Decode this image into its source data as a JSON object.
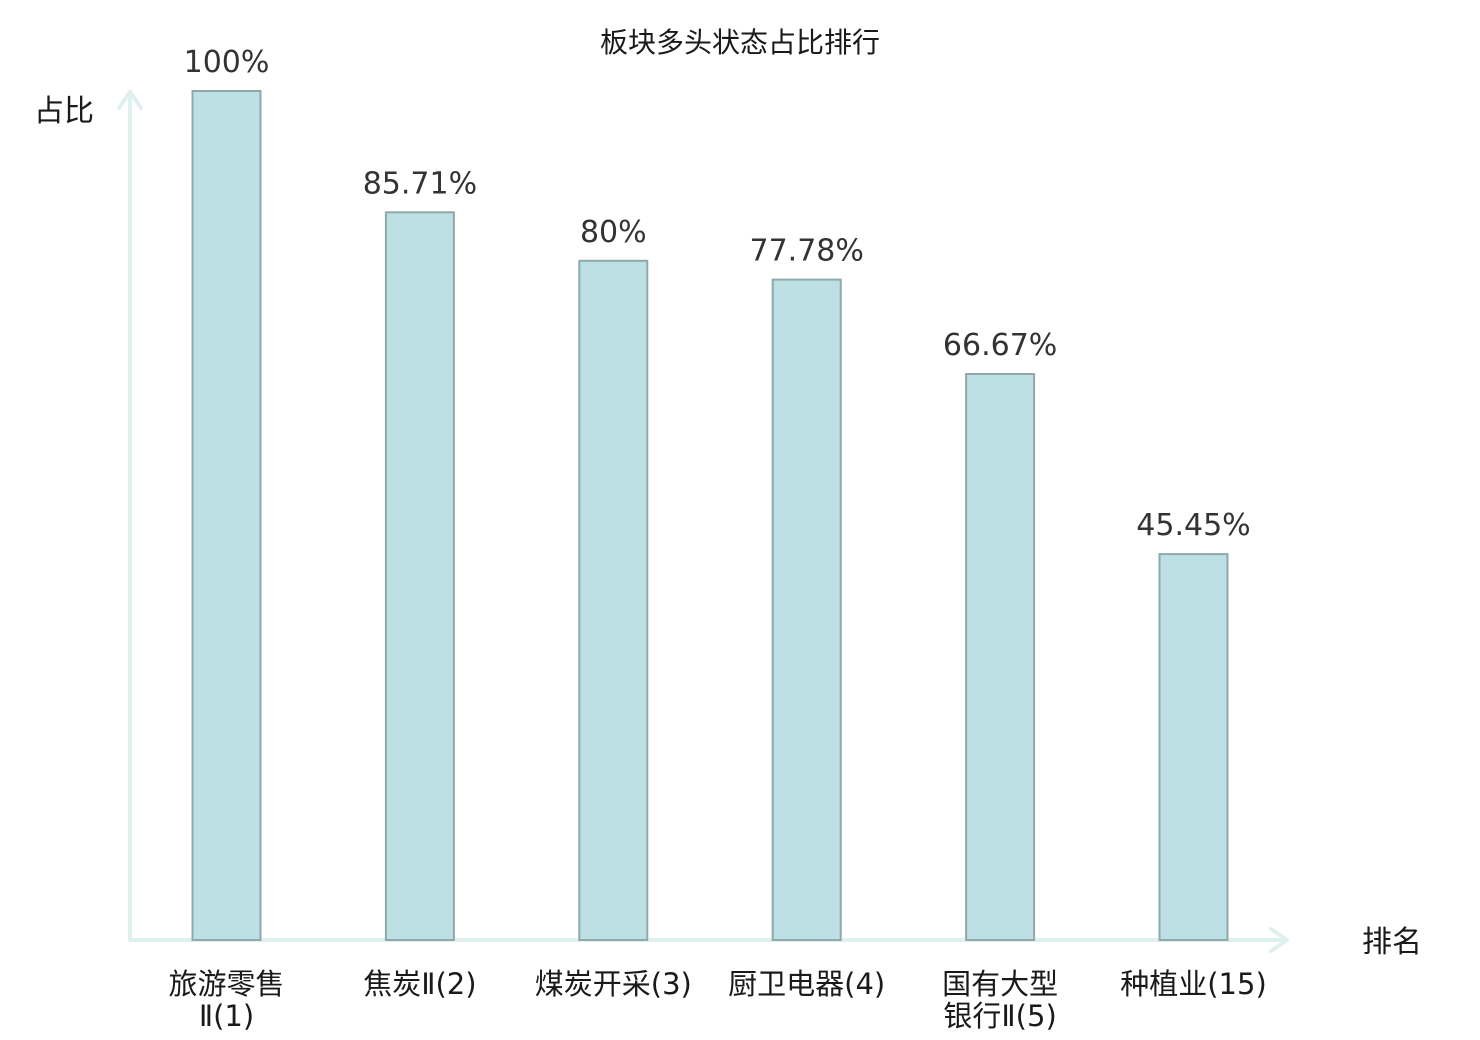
{
  "chart_data": {
    "type": "bar",
    "title": "板块多头状态占比排行",
    "xlabel": "排名",
    "ylabel": "占比",
    "categories": [
      [
        "旅游零售",
        "Ⅱ(1)"
      ],
      [
        "焦炭Ⅱ(2)"
      ],
      [
        "煤炭开采(3)"
      ],
      [
        "厨卫电器(4)"
      ],
      [
        "国有大型",
        "银行Ⅱ(5)"
      ],
      [
        "种植业(15)"
      ]
    ],
    "values": [
      100,
      85.71,
      80,
      77.78,
      66.67,
      45.45
    ],
    "value_labels": [
      "100%",
      "85.71%",
      "80%",
      "77.78%",
      "66.67%",
      "45.45%"
    ],
    "highlight_category_index": 5,
    "ylim": [
      0,
      100
    ],
    "grid": false,
    "colors": {
      "bar_fill": "#bce0e3",
      "bar_stroke": "#8fa9ab",
      "axis": "#dff1ee",
      "highlight_label": "#e11f1f",
      "text": "#1a1a1a"
    }
  }
}
